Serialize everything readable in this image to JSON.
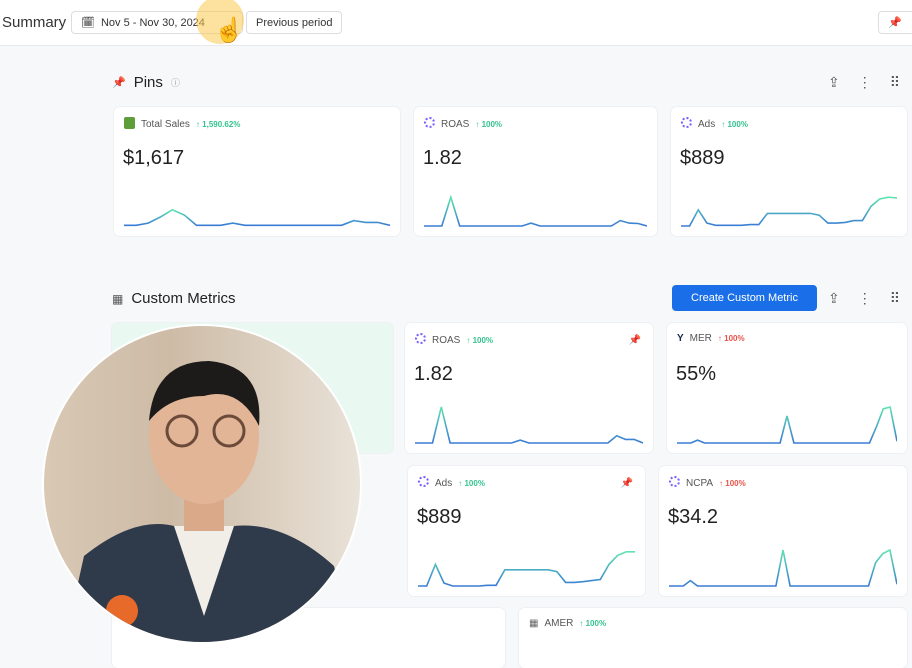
{
  "header": {
    "title": "Summary",
    "date_range": "Nov 5 - Nov 30, 2024",
    "compare": "Previous period"
  },
  "pins": {
    "title": "Pins",
    "cards": [
      {
        "name": "Total Sales",
        "change": "1,590.62%",
        "direction": "up",
        "value": "$1,617",
        "icon": "shopify-icon",
        "spark": [
          2,
          2,
          8,
          25,
          45,
          30,
          2,
          2,
          2,
          8,
          2,
          2,
          2,
          2,
          2,
          2,
          2,
          2,
          2,
          15,
          10,
          10,
          2
        ]
      },
      {
        "name": "ROAS",
        "change": "100%",
        "direction": "up",
        "value": "1.82",
        "icon": "dots-icon",
        "spark": [
          0,
          0,
          0,
          80,
          0,
          0,
          0,
          0,
          0,
          0,
          0,
          0,
          8,
          0,
          0,
          0,
          0,
          0,
          0,
          0,
          0,
          0,
          15,
          8,
          7,
          0
        ]
      },
      {
        "name": "Ads",
        "change": "100%",
        "direction": "up",
        "value": "$889",
        "icon": "dots-icon",
        "spark": [
          0,
          0,
          45,
          8,
          2,
          2,
          2,
          2,
          4,
          4,
          35,
          35,
          35,
          35,
          35,
          35,
          30,
          8,
          8,
          10,
          15,
          15,
          55,
          75,
          80,
          78
        ]
      }
    ]
  },
  "custom": {
    "title": "Custom Metrics",
    "create_label": "Create Custom Metric",
    "cards": [
      {
        "name": "ROAS",
        "change": "100%",
        "direction": "up",
        "value": "1.82",
        "icon": "dots-icon",
        "pinned": true,
        "spark": [
          0,
          0,
          0,
          100,
          0,
          0,
          0,
          0,
          0,
          0,
          0,
          0,
          8,
          0,
          0,
          0,
          0,
          0,
          0,
          0,
          0,
          0,
          0,
          20,
          10,
          10,
          0
        ]
      },
      {
        "name": "MER",
        "change": "100%",
        "direction": "down",
        "value": "55%",
        "icon": "triple-whale-icon",
        "pinned": false,
        "spark": [
          0,
          0,
          0,
          8,
          0,
          0,
          0,
          0,
          0,
          0,
          0,
          0,
          0,
          0,
          0,
          0,
          75,
          0,
          0,
          0,
          0,
          0,
          0,
          0,
          0,
          0,
          0,
          0,
          0,
          45,
          95,
          100,
          5
        ]
      },
      {
        "name": "Ads",
        "change": "100%",
        "direction": "up",
        "value": "$889",
        "icon": "dots-icon",
        "pinned": true,
        "spark": [
          0,
          0,
          60,
          8,
          0,
          0,
          0,
          0,
          2,
          2,
          45,
          45,
          45,
          45,
          45,
          45,
          40,
          10,
          10,
          12,
          15,
          18,
          60,
          85,
          95,
          95
        ]
      },
      {
        "name": "NCPA",
        "change": "100%",
        "direction": "down",
        "value": "$34.2",
        "icon": "dots-icon",
        "pinned": false,
        "spark": [
          0,
          0,
          0,
          15,
          0,
          0,
          0,
          0,
          0,
          0,
          0,
          0,
          0,
          0,
          0,
          0,
          100,
          0,
          0,
          0,
          0,
          0,
          0,
          0,
          0,
          0,
          0,
          0,
          0,
          65,
          90,
          100,
          5
        ]
      },
      {
        "name": "AMER",
        "change": "100%",
        "direction": "up",
        "icon": "grid-icon"
      }
    ]
  },
  "colors": {
    "accent": "#1a6fe8",
    "up": "#34c38f",
    "down": "#e5534b",
    "spark_start": "#3a7bd5",
    "spark_end": "#5fe3b0"
  }
}
